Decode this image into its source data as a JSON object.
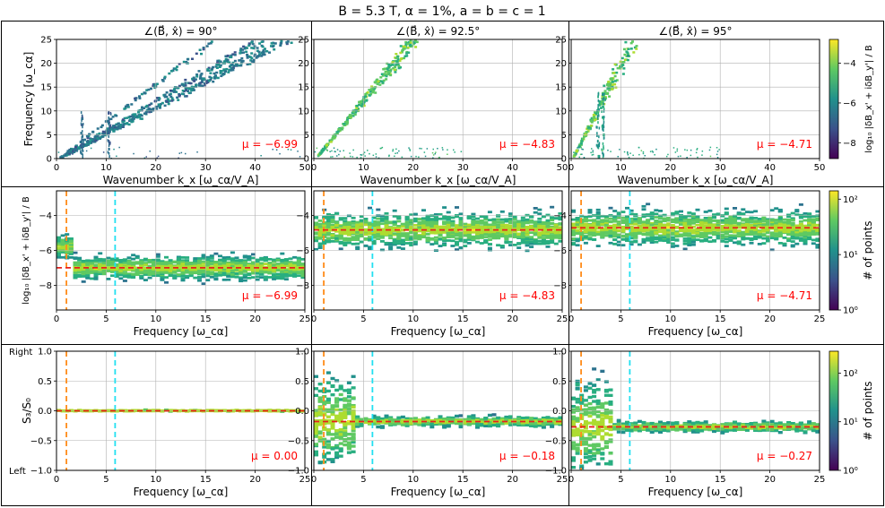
{
  "figure": {
    "title": "B = 5.3 T,  α = 1%,  a = b = c = 1"
  },
  "colors": {
    "mean_line": "#e8201b",
    "mu_text": "#ff0000",
    "orange_line": "#ff8c1a",
    "cyan_line": "#22e0f0",
    "grid": "#b0b0b0",
    "frame": "#000000"
  },
  "colorbars": [
    {
      "label": "log₁₀ |δB_x' + iδB_y'| / B",
      "ticks": [
        "−4",
        "−6",
        "−8"
      ],
      "tick_values": [
        -4,
        -6,
        -8
      ],
      "range": [
        -8.8,
        -2.8
      ]
    },
    {
      "label": "# of points",
      "ticks": [
        "10²",
        "10¹",
        "10⁰"
      ],
      "tick_values": [
        2,
        1,
        0
      ],
      "range": [
        0,
        2.15
      ]
    },
    {
      "label": "# of points",
      "ticks": [
        "10²",
        "10¹",
        "10⁰"
      ],
      "tick_values": [
        2,
        1,
        0
      ],
      "range": [
        0,
        2.45
      ]
    }
  ],
  "chart_data": [
    {
      "type": "heatmap",
      "title": "∠(B⃗, x̂) = 90°",
      "xlabel": "Wavenumber k_x [ω_cα/V_A]",
      "ylabel": "Frequency [ω_cα]",
      "xlim": [
        0,
        50
      ],
      "ylim": [
        0,
        25
      ],
      "xticks": [
        0,
        10,
        20,
        30,
        40,
        50
      ],
      "yticks": [
        0,
        5,
        10,
        15,
        20,
        25
      ],
      "grid": true,
      "mu_label": "μ = −6.99",
      "mu": -6.99
    },
    {
      "type": "heatmap",
      "title": "∠(B⃗, x̂) = 92.5°",
      "xlabel": "Wavenumber k_x [ω_cα/V_A]",
      "ylabel": "",
      "xlim": [
        0,
        50
      ],
      "ylim": [
        0,
        25
      ],
      "xticks": [
        0,
        10,
        20,
        30,
        40,
        50
      ],
      "yticks": [
        0,
        5,
        10,
        15,
        20,
        25
      ],
      "grid": true,
      "mu_label": "μ = −4.83",
      "mu": -4.83
    },
    {
      "type": "heatmap",
      "title": "∠(B⃗, x̂) = 95°",
      "xlabel": "Wavenumber k_x [ω_cα/V_A]",
      "ylabel": "",
      "xlim": [
        0,
        50
      ],
      "ylim": [
        0,
        25
      ],
      "xticks": [
        0,
        10,
        20,
        30,
        40,
        50
      ],
      "yticks": [
        0,
        5,
        10,
        15,
        20,
        25
      ],
      "grid": true,
      "mu_label": "μ = −4.71",
      "mu": -4.71
    },
    {
      "type": "heatmap",
      "title": "",
      "xlabel": "Frequency [ω_cα]",
      "ylabel": "log₁₀ |δB_x' + iδB_y'| / B",
      "xlim": [
        0,
        25
      ],
      "ylim": [
        -9.4,
        -2.6
      ],
      "xticks": [
        0,
        5,
        10,
        15,
        20,
        25
      ],
      "yticks": [
        -4,
        -6,
        -8
      ],
      "grid": true,
      "mu_label": "μ = −6.99",
      "mu": -6.99,
      "vlines": [
        1.0,
        5.9
      ]
    },
    {
      "type": "heatmap",
      "title": "",
      "xlabel": "Frequency [ω_cα]",
      "ylabel": "",
      "xlim": [
        0,
        25
      ],
      "ylim": [
        -9.4,
        -2.6
      ],
      "xticks": [
        0,
        5,
        10,
        15,
        20,
        25
      ],
      "yticks": [
        -4,
        -6,
        -8
      ],
      "grid": true,
      "mu_label": "μ = −4.83",
      "mu": -4.83,
      "vlines": [
        1.0,
        5.9
      ]
    },
    {
      "type": "heatmap",
      "title": "",
      "xlabel": "Frequency [ω_cα]",
      "ylabel": "",
      "xlim": [
        0,
        25
      ],
      "ylim": [
        -9.4,
        -2.6
      ],
      "xticks": [
        0,
        5,
        10,
        15,
        20,
        25
      ],
      "yticks": [
        -4,
        -6,
        -8
      ],
      "grid": true,
      "mu_label": "μ = −4.71",
      "mu": -4.71,
      "vlines": [
        1.0,
        5.9
      ]
    },
    {
      "type": "heatmap",
      "title": "",
      "xlabel": "Frequency [ω_cα]",
      "ylabel": "S₃/S₀",
      "xlim": [
        0,
        25
      ],
      "ylim": [
        -1,
        1
      ],
      "xticks": [
        0,
        5,
        10,
        15,
        20,
        25
      ],
      "yticks": [
        1.0,
        0.5,
        0.0,
        -0.5,
        -1.0
      ],
      "ytick_labels": [
        "1.0",
        "0.5",
        "0.0",
        "−0.5",
        "−1.0"
      ],
      "side_labels": {
        "top": "Right",
        "bottom": "Left"
      },
      "grid": true,
      "mu_label": "μ = 0.00",
      "mu": 0.0,
      "vlines": [
        1.0,
        5.9
      ]
    },
    {
      "type": "heatmap",
      "title": "",
      "xlabel": "Frequency [ω_cα]",
      "ylabel": "",
      "xlim": [
        0,
        25
      ],
      "ylim": [
        -1,
        1
      ],
      "xticks": [
        0,
        5,
        10,
        15,
        20,
        25
      ],
      "yticks": [
        1.0,
        0.5,
        0.0,
        -0.5,
        -1.0
      ],
      "ytick_labels": [
        "1.0",
        "0.5",
        "0.0",
        "−0.5",
        "−1.0"
      ],
      "grid": true,
      "mu_label": "μ = −0.18",
      "mu": -0.18,
      "vlines": [
        1.0,
        5.9
      ]
    },
    {
      "type": "heatmap",
      "title": "",
      "xlabel": "Frequency [ω_cα]",
      "ylabel": "",
      "xlim": [
        0,
        25
      ],
      "ylim": [
        -1,
        1
      ],
      "xticks": [
        0,
        5,
        10,
        15,
        20,
        25
      ],
      "yticks": [
        1.0,
        0.5,
        0.0,
        -0.5,
        -1.0
      ],
      "ytick_labels": [
        "1.0",
        "0.5",
        "0.0",
        "−0.5",
        "−1.0"
      ],
      "grid": true,
      "mu_label": "μ = −0.27",
      "mu": -0.27,
      "vlines": [
        1.0,
        5.9
      ]
    }
  ]
}
